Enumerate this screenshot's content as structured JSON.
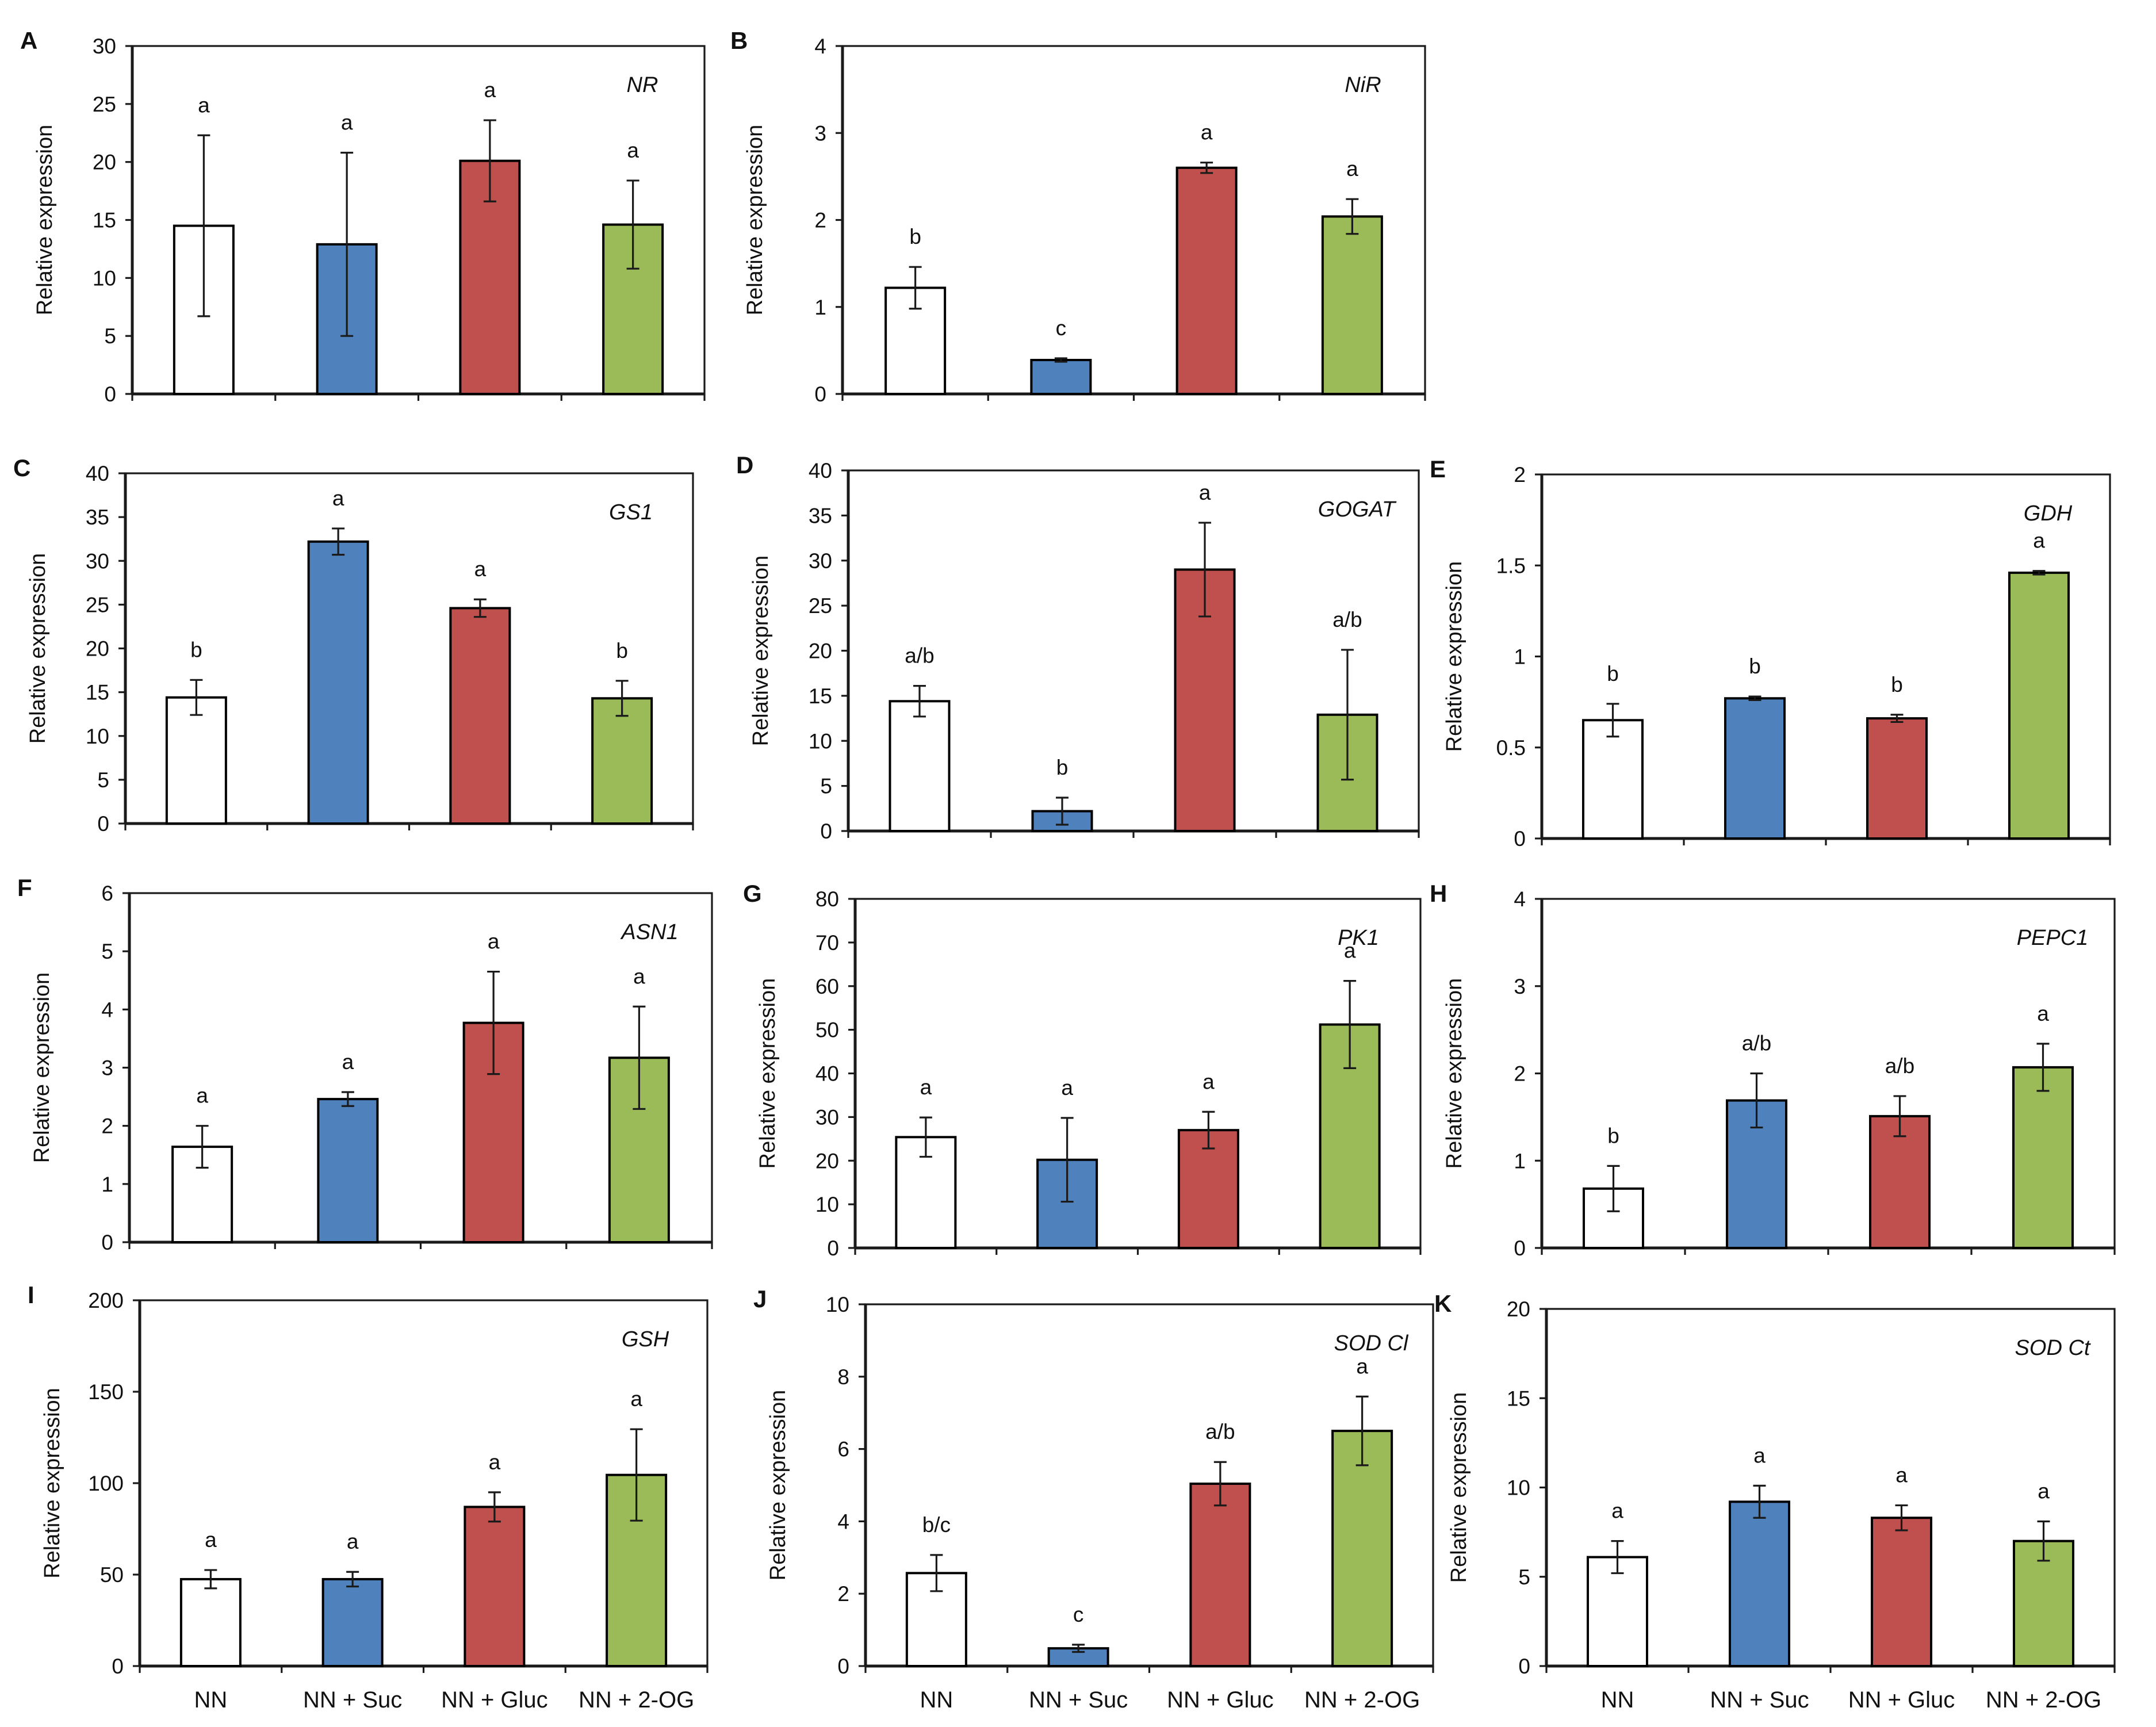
{
  "figure": {
    "categories": [
      "NN",
      "NN + Suc",
      "NN + Gluc",
      "NN + 2-OG"
    ],
    "colors": [
      "#ffffff",
      "#4f81bd",
      "#c0504d",
      "#9bbb59"
    ],
    "ylabel": "Relative expression"
  },
  "chart_data": [
    {
      "panel": "A",
      "type": "bar",
      "gene": "NR",
      "ylabel": "Relative expression",
      "categories": [
        "NN",
        "NN + Suc",
        "NN + Gluc",
        "NN + 2-OG"
      ],
      "values": [
        14.5,
        12.9,
        20.1,
        14.6
      ],
      "errors": [
        7.8,
        7.9,
        3.5,
        3.8
      ],
      "letters": [
        "a",
        "a",
        "a",
        "a"
      ],
      "ylim": [
        0,
        30
      ],
      "yticks": [
        0,
        5,
        10,
        15,
        20,
        25,
        30
      ]
    },
    {
      "panel": "B",
      "type": "bar",
      "gene": "NiR",
      "ylabel": "Relative expression",
      "categories": [
        "NN",
        "NN + Suc",
        "NN + Gluc",
        "NN + 2-OG"
      ],
      "values": [
        1.22,
        0.39,
        2.6,
        2.04
      ],
      "errors": [
        0.24,
        0.02,
        0.06,
        0.2
      ],
      "letters": [
        "b",
        "c",
        "a",
        "a"
      ],
      "ylim": [
        0,
        4
      ],
      "yticks": [
        0,
        1,
        2,
        3,
        4
      ]
    },
    {
      "panel": "C",
      "type": "bar",
      "gene": "GS1",
      "ylabel": "Relative expression",
      "categories": [
        "NN",
        "NN + Suc",
        "NN + Gluc",
        "NN + 2-OG"
      ],
      "values": [
        14.4,
        32.2,
        24.6,
        14.3
      ],
      "errors": [
        2.0,
        1.5,
        1.0,
        2.0
      ],
      "letters": [
        "b",
        "a",
        "a",
        "b"
      ],
      "ylim": [
        0,
        40
      ],
      "yticks": [
        0,
        5,
        10,
        15,
        20,
        25,
        30,
        35,
        40
      ]
    },
    {
      "panel": "D",
      "type": "bar",
      "gene": "GOGAT",
      "ylabel": "Relative expression",
      "categories": [
        "NN",
        "NN + Suc",
        "NN + Gluc",
        "NN + 2-OG"
      ],
      "values": [
        14.4,
        2.2,
        29.0,
        12.9
      ],
      "errors": [
        1.7,
        1.5,
        5.2,
        7.2
      ],
      "letters": [
        "a/b",
        "b",
        "a",
        "a/b"
      ],
      "ylim": [
        0,
        40
      ],
      "yticks": [
        0,
        5,
        10,
        15,
        20,
        25,
        30,
        35,
        40
      ]
    },
    {
      "panel": "E",
      "type": "bar",
      "gene": "GDH",
      "ylabel": "Relative expression",
      "categories": [
        "NN",
        "NN + Suc",
        "NN + Gluc",
        "NN + 2-OG"
      ],
      "values": [
        0.65,
        0.77,
        0.66,
        1.46
      ],
      "errors": [
        0.09,
        0.01,
        0.02,
        0.01
      ],
      "letters": [
        "b",
        "b",
        "b",
        "a"
      ],
      "ylim": [
        0,
        2
      ],
      "yticks": [
        0,
        0.5,
        1,
        1.5,
        2
      ]
    },
    {
      "panel": "F",
      "type": "bar",
      "gene": "ASN1",
      "ylabel": "Relative expression",
      "categories": [
        "NN",
        "NN + Suc",
        "NN + Gluc",
        "NN + 2-OG"
      ],
      "values": [
        1.64,
        2.46,
        3.77,
        3.17
      ],
      "errors": [
        0.36,
        0.12,
        0.88,
        0.88
      ],
      "letters": [
        "a",
        "a",
        "a",
        "a"
      ],
      "ylim": [
        0,
        6
      ],
      "yticks": [
        0,
        1,
        2,
        3,
        4,
        5,
        6
      ]
    },
    {
      "panel": "G",
      "type": "bar",
      "gene": "PK1",
      "ylabel": "Relative expression",
      "categories": [
        "NN",
        "NN + Suc",
        "NN + Gluc",
        "NN + 2-OG"
      ],
      "values": [
        25.4,
        20.2,
        27.0,
        51.2
      ],
      "errors": [
        4.5,
        9.6,
        4.2,
        10.0
      ],
      "letters": [
        "a",
        "a",
        "a",
        "a"
      ],
      "ylim": [
        0,
        80
      ],
      "yticks": [
        0,
        10,
        20,
        30,
        40,
        50,
        60,
        70,
        80
      ]
    },
    {
      "panel": "H",
      "type": "bar",
      "gene": "PEPC1",
      "ylabel": "Relative expression",
      "categories": [
        "NN",
        "NN + Suc",
        "NN + Gluc",
        "NN + 2-OG"
      ],
      "values": [
        0.68,
        1.69,
        1.51,
        2.07
      ],
      "errors": [
        0.26,
        0.31,
        0.23,
        0.27
      ],
      "letters": [
        "b",
        "a/b",
        "a/b",
        "a"
      ],
      "ylim": [
        0,
        4
      ],
      "yticks": [
        0,
        1,
        2,
        3,
        4
      ]
    },
    {
      "panel": "I",
      "type": "bar",
      "gene": "GSH",
      "ylabel": "Relative expression",
      "categories": [
        "NN",
        "NN + Suc",
        "NN + Gluc",
        "NN + 2-OG"
      ],
      "values": [
        47.5,
        47.5,
        87.0,
        104.5
      ],
      "errors": [
        5.0,
        4.0,
        8.0,
        25.0
      ],
      "letters": [
        "a",
        "a",
        "a",
        "a"
      ],
      "ylim": [
        0,
        200
      ],
      "yticks": [
        0,
        50,
        100,
        150,
        200
      ]
    },
    {
      "panel": "J",
      "type": "bar",
      "gene": "SOD Cl",
      "ylabel": "Relative expression",
      "categories": [
        "NN",
        "NN + Suc",
        "NN + Gluc",
        "NN + 2-OG"
      ],
      "values": [
        2.57,
        0.49,
        5.04,
        6.5
      ],
      "errors": [
        0.5,
        0.1,
        0.6,
        0.95
      ],
      "letters": [
        "b/c",
        "c",
        "a/b",
        "a"
      ],
      "ylim": [
        0,
        10
      ],
      "yticks": [
        0,
        2,
        4,
        6,
        8,
        10
      ]
    },
    {
      "panel": "K",
      "type": "bar",
      "gene": "SOD Ct",
      "ylabel": "Relative expression",
      "categories": [
        "NN",
        "NN + Suc",
        "NN + Gluc",
        "NN + 2-OG"
      ],
      "values": [
        6.1,
        9.2,
        8.3,
        7.0
      ],
      "errors": [
        0.9,
        0.9,
        0.7,
        1.1
      ],
      "letters": [
        "a",
        "a",
        "a",
        "a"
      ],
      "ylim": [
        0,
        20
      ],
      "yticks": [
        0,
        5,
        10,
        15,
        20
      ]
    }
  ]
}
